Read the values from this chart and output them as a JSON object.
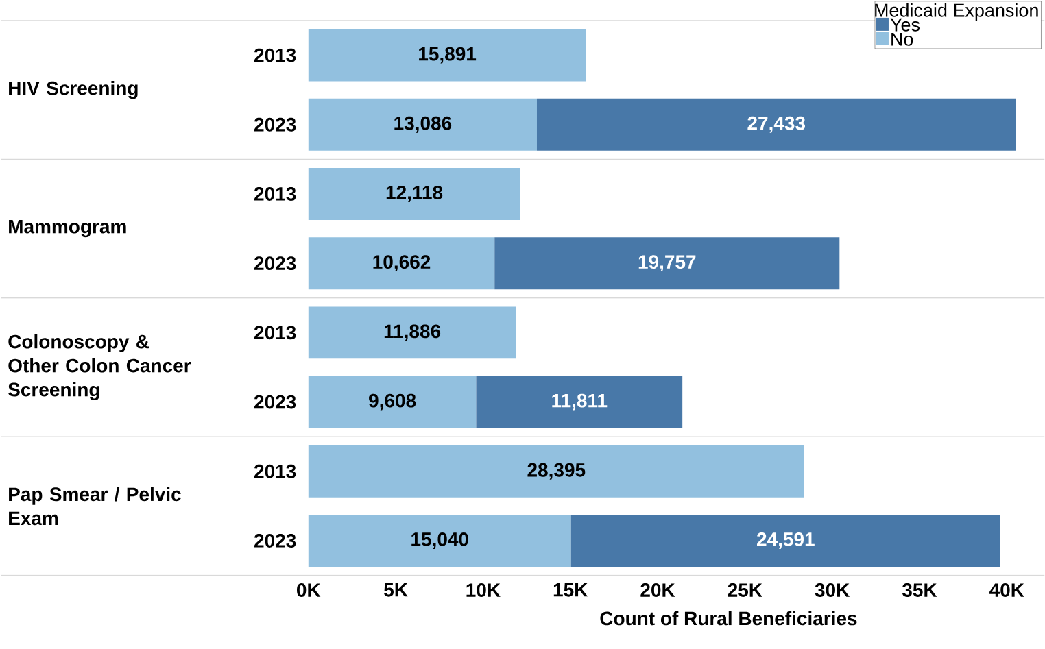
{
  "chart_data": {
    "type": "bar",
    "orientation": "horizontal",
    "stacked": true,
    "categories": [
      "2013",
      "2023",
      "2013",
      "2023",
      "2013",
      "2023",
      "2013",
      "2023"
    ],
    "series": [
      {
        "name": "No",
        "color": "#92c0df",
        "values": [
          15891,
          13086,
          12118,
          10662,
          11886,
          9608,
          28395,
          15040
        ],
        "value_labels": [
          "15,891",
          "13,086",
          "12,118",
          "10,662",
          "11,886",
          "9,608",
          "28,395",
          "15,040"
        ]
      },
      {
        "name": "Yes",
        "color": "#4878a8",
        "values": [
          null,
          27433,
          null,
          19757,
          null,
          11811,
          null,
          24591
        ],
        "value_labels": [
          null,
          "27,433",
          null,
          "19,757",
          null,
          "11,811",
          null,
          "24,591"
        ]
      }
    ],
    "xlabel": "Count of Rural Beneficiaries",
    "xlim": [
      0,
      42000
    ],
    "xticks": [
      {
        "value": 0,
        "label": "0K"
      },
      {
        "value": 5000,
        "label": "5K"
      },
      {
        "value": 10000,
        "label": "10K"
      },
      {
        "value": 15000,
        "label": "15K"
      },
      {
        "value": 20000,
        "label": "20K"
      },
      {
        "value": 25000,
        "label": "25K"
      },
      {
        "value": 30000,
        "label": "30K"
      },
      {
        "value": 35000,
        "label": "35K"
      },
      {
        "value": 40000,
        "label": "40K"
      }
    ],
    "legend": "top right",
    "legend_title": "Medicaid Expansion",
    "annotations": [
      "HIV Screening",
      "Mammogram",
      "Colonoscopy & Other Colon Cancer Screening",
      "Pap Smear / Pelvic Exam"
    ]
  }
}
